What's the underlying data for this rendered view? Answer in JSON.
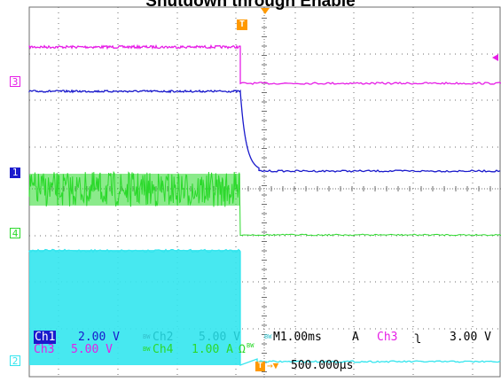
{
  "title": "Shutdown through Enable",
  "markers": {
    "trigger_label": "T",
    "ch3": "3",
    "ch1": "1",
    "ch4": "4",
    "ch2": "2"
  },
  "readouts": {
    "ch1_name": "Ch1",
    "ch1_scale": "2.00 V",
    "bw_badge": "BW",
    "ch2_name": "Ch2",
    "ch2_scale": "5.00 V",
    "timebase": "M1.00ms",
    "acq": "A",
    "trig_source": "Ch3",
    "trig_slope": "ʅ",
    "trig_level": "3.00 V",
    "ch3_name": "Ch3",
    "ch3_scale": "5.00 V",
    "ch4_name": "Ch4",
    "ch4_scale": "1.00 A",
    "ch4_unit": "Ω",
    "trig_pos_arrow": "→▼",
    "trig_pos": "500.000µs"
  },
  "colors": {
    "ch1": "#1a1acc",
    "ch2": "#33e5ee",
    "ch3": "#e61ee6",
    "ch4": "#2bd92b",
    "trigger": "#ff9900",
    "grid": "#6e6e6e"
  }
}
